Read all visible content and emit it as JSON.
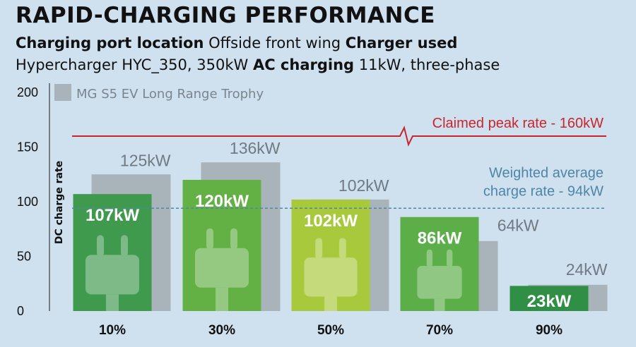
{
  "header": {
    "title": "RAPID-CHARGING PERFORMANCE",
    "port_label": "Charging port location",
    "port_value": "Offside front wing",
    "charger_label": "Charger used",
    "charger_value": "Hypercharger HYC_350, 350kW",
    "ac_label": "AC charging",
    "ac_value": "11kW, three-phase"
  },
  "colors": {
    "background": "#cfe0ee",
    "comparison_bar": "#a9b3ba",
    "claimed_line": "#c8262d",
    "average_line": "#4d86a6",
    "bar_colors": [
      "#3f9a4e",
      "#63b045",
      "#a8c93c",
      "#5cae48",
      "#2f8f45"
    ]
  },
  "chart_data": {
    "type": "bar",
    "ylabel": "DC charge rate",
    "ylim": [
      0,
      200
    ],
    "yticks": [
      0,
      50,
      100,
      150,
      200
    ],
    "categories": [
      "10%",
      "30%",
      "50%",
      "70%",
      "90%"
    ],
    "series": [
      {
        "name": "",
        "values": [
          107,
          120,
          102,
          86,
          23
        ],
        "labels": [
          "107kW",
          "120kW",
          "102kW",
          "86kW",
          "23kW"
        ]
      },
      {
        "name": "MG S5 EV Long Range Trophy",
        "values": [
          125,
          136,
          102,
          64,
          24
        ],
        "labels": [
          "125kW",
          "136kW",
          "102kW",
          "64kW",
          "24kW"
        ]
      }
    ],
    "reference_lines": [
      {
        "label": "Claimed peak rate - 160kW",
        "value": 160,
        "style": "solid"
      },
      {
        "label_line1": "Weighted average",
        "label_line2": "charge rate - 94kW",
        "value": 94,
        "style": "dashed"
      }
    ],
    "legend": {
      "position": "top-left"
    },
    "bar_icon": "plug-icon"
  }
}
